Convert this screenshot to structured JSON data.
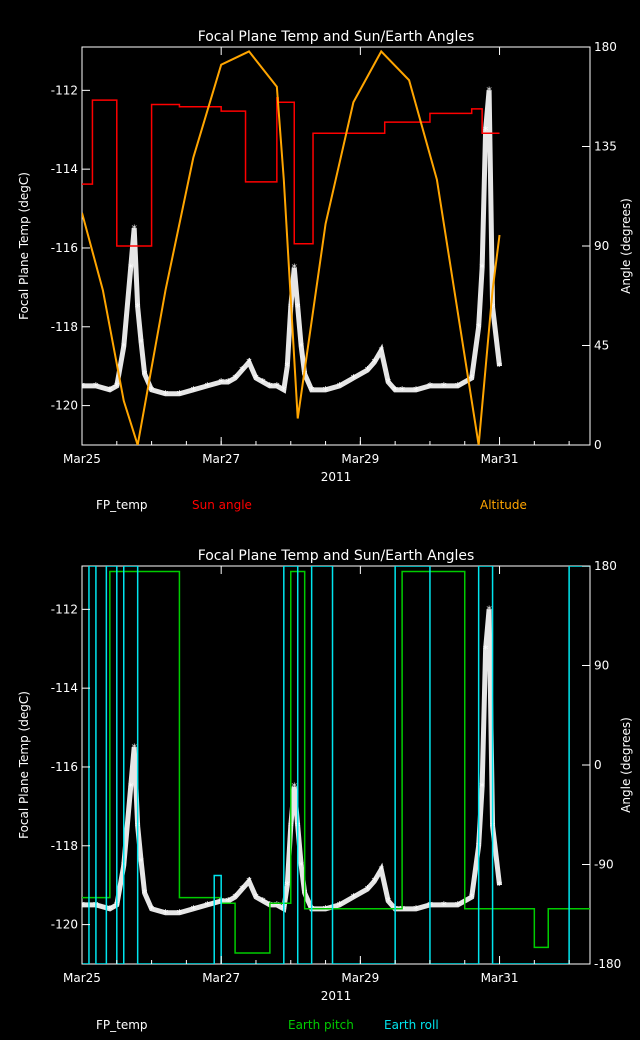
{
  "chart_data": [
    {
      "type": "line",
      "title": "Focal Plane Temp and Sun/Earth Angles",
      "xlabel": "2011",
      "ylabel": "Focal Plane Temp (degC)",
      "y2label": "Angle (degrees)",
      "xlim": [
        0,
        7.3
      ],
      "ylim": [
        -121,
        -110.9
      ],
      "y2lim": [
        0,
        180
      ],
      "x_ticks": [
        0,
        2,
        4,
        6
      ],
      "x_tick_labels": [
        "Mar25",
        "Mar27",
        "Mar29",
        "Mar31"
      ],
      "y_ticks": [
        -120,
        -118,
        -116,
        -114,
        -112
      ],
      "y_tick_labels": [
        "-120",
        "-118",
        "-116",
        "-114",
        "-112"
      ],
      "y2_ticks": [
        0,
        45,
        90,
        135,
        180
      ],
      "y2_tick_labels": [
        "0",
        "45",
        "90",
        "135",
        "180"
      ],
      "legend": [
        "FP_temp",
        "Sun angle",
        "Altitude"
      ],
      "series": [
        {
          "name": "FP_temp",
          "axis": "left",
          "style": "markers",
          "color": "#ffffff",
          "x": [
            0.0,
            0.2,
            0.4,
            0.5,
            0.6,
            0.7,
            0.75,
            0.8,
            0.85,
            0.9,
            1.0,
            1.2,
            1.4,
            1.6,
            1.8,
            2.0,
            2.1,
            2.2,
            2.3,
            2.4,
            2.5,
            2.6,
            2.7,
            2.8,
            2.9,
            2.95,
            3.0,
            3.05,
            3.1,
            3.15,
            3.2,
            3.3,
            3.5,
            3.7,
            3.9,
            4.1,
            4.2,
            4.3,
            4.4,
            4.5,
            4.6,
            4.8,
            5.0,
            5.2,
            5.4,
            5.6,
            5.7,
            5.75,
            5.8,
            5.85,
            5.9,
            6.0
          ],
          "y": [
            -119.5,
            -119.5,
            -119.6,
            -119.5,
            -118.5,
            -116.5,
            -115.5,
            -117.5,
            -118.4,
            -119.2,
            -119.6,
            -119.7,
            -119.7,
            -119.6,
            -119.5,
            -119.4,
            -119.4,
            -119.3,
            -119.1,
            -118.9,
            -119.3,
            -119.4,
            -119.5,
            -119.5,
            -119.6,
            -119.0,
            -117.5,
            -116.5,
            -117.5,
            -118.5,
            -119.2,
            -119.6,
            -119.6,
            -119.5,
            -119.3,
            -119.1,
            -118.9,
            -118.6,
            -119.4,
            -119.6,
            -119.6,
            -119.6,
            -119.5,
            -119.5,
            -119.5,
            -119.3,
            -118.0,
            -116.5,
            -113.0,
            -112.0,
            -117.5,
            -119.0
          ]
        },
        {
          "name": "Sun angle",
          "axis": "right",
          "style": "step",
          "color": "#ff0000",
          "x": [
            0,
            0.15,
            0.15,
            0.5,
            0.5,
            1.0,
            1.0,
            1.4,
            1.4,
            2.0,
            2.0,
            2.35,
            2.35,
            2.8,
            2.8,
            2.82,
            2.82,
            3.05,
            3.05,
            3.32,
            3.32,
            4.2,
            4.2,
            4.35,
            4.35,
            5.0,
            5.0,
            5.6,
            5.6,
            5.75,
            5.75,
            6.0
          ],
          "y": [
            118,
            118,
            156,
            156,
            90,
            90,
            154,
            154,
            153,
            153,
            151,
            151,
            119,
            119,
            157,
            157,
            155,
            155,
            91,
            91,
            141,
            141,
            141,
            141,
            146,
            146,
            150,
            150,
            152,
            152,
            141,
            141
          ]
        },
        {
          "name": "Altitude",
          "axis": "right",
          "style": "line",
          "color": "#ffa500",
          "x": [
            0.0,
            0.3,
            0.6,
            0.8,
            1.2,
            1.6,
            2.0,
            2.4,
            2.8,
            2.9,
            3.1,
            3.5,
            3.9,
            4.3,
            4.7,
            5.1,
            5.35,
            5.5,
            5.7,
            5.9,
            6.0
          ],
          "y": [
            105,
            70,
            20,
            0,
            70,
            130,
            172,
            178,
            162,
            120,
            12,
            100,
            155,
            178,
            165,
            120,
            70,
            40,
            0,
            70,
            95
          ]
        }
      ]
    },
    {
      "type": "line",
      "title": "Focal Plane Temp and Sun/Earth Angles",
      "xlabel": "2011",
      "ylabel": "Focal Plane Temp (degC)",
      "y2label": "Angle (degrees)",
      "xlim": [
        0,
        7.3
      ],
      "ylim": [
        -121,
        -110.9
      ],
      "y2lim": [
        -180,
        180
      ],
      "x_ticks": [
        0,
        2,
        4,
        6
      ],
      "x_tick_labels": [
        "Mar25",
        "Mar27",
        "Mar29",
        "Mar31"
      ],
      "y_ticks": [
        -120,
        -118,
        -116,
        -114,
        -112
      ],
      "y_tick_labels": [
        "-120",
        "-118",
        "-116",
        "-114",
        "-112"
      ],
      "y2_ticks": [
        -180,
        -90,
        0,
        90,
        180
      ],
      "y2_tick_labels": [
        "-180",
        "-90",
        "0",
        "90",
        "180"
      ],
      "legend": [
        "FP_temp",
        "Earth pitch",
        "Earth roll"
      ],
      "series": [
        {
          "name": "FP_temp",
          "axis": "left",
          "style": "markers",
          "color": "#ffffff",
          "x": [
            0.0,
            0.2,
            0.4,
            0.5,
            0.6,
            0.7,
            0.75,
            0.8,
            0.85,
            0.9,
            1.0,
            1.2,
            1.4,
            1.6,
            1.8,
            2.0,
            2.1,
            2.2,
            2.3,
            2.4,
            2.5,
            2.6,
            2.7,
            2.8,
            2.9,
            2.95,
            3.0,
            3.05,
            3.1,
            3.15,
            3.2,
            3.3,
            3.5,
            3.7,
            3.9,
            4.1,
            4.2,
            4.3,
            4.4,
            4.5,
            4.6,
            4.8,
            5.0,
            5.2,
            5.4,
            5.6,
            5.7,
            5.75,
            5.8,
            5.85,
            5.9,
            6.0
          ],
          "y": [
            -119.5,
            -119.5,
            -119.6,
            -119.5,
            -118.5,
            -116.5,
            -115.5,
            -117.5,
            -118.4,
            -119.2,
            -119.6,
            -119.7,
            -119.7,
            -119.6,
            -119.5,
            -119.4,
            -119.4,
            -119.3,
            -119.1,
            -118.9,
            -119.3,
            -119.4,
            -119.5,
            -119.5,
            -119.6,
            -119.0,
            -117.5,
            -116.5,
            -117.5,
            -118.5,
            -119.2,
            -119.6,
            -119.6,
            -119.5,
            -119.3,
            -119.1,
            -118.9,
            -118.6,
            -119.4,
            -119.6,
            -119.6,
            -119.6,
            -119.5,
            -119.5,
            -119.5,
            -119.3,
            -118.0,
            -116.5,
            -113.0,
            -112.0,
            -117.5,
            -119.0
          ]
        },
        {
          "name": "Earth pitch",
          "axis": "right",
          "style": "step",
          "color": "#00cc00",
          "x": [
            0,
            0.4,
            0.4,
            1.4,
            1.4,
            2.0,
            2.0,
            2.2,
            2.2,
            2.7,
            2.7,
            3.0,
            3.0,
            3.2,
            3.2,
            3.5,
            3.5,
            4.0,
            4.0,
            4.6,
            4.6,
            5.5,
            5.5,
            6.0,
            6.0,
            6.5,
            6.5,
            6.7,
            6.7,
            7.3
          ],
          "y": [
            -120,
            -120,
            175,
            175,
            -120,
            -120,
            -125,
            -125,
            -170,
            -170,
            -125,
            -125,
            175,
            175,
            -130,
            -130,
            -130,
            -130,
            -130,
            -130,
            175,
            175,
            -130,
            -130,
            -130,
            -130,
            -165,
            -165,
            -130,
            -130
          ]
        },
        {
          "name": "Earth roll",
          "axis": "right",
          "style": "step",
          "color": "#00e5ee",
          "x": [
            0,
            0.1,
            0.1,
            0.2,
            0.2,
            0.35,
            0.35,
            0.5,
            0.5,
            0.6,
            0.6,
            0.8,
            0.8,
            1.4,
            1.4,
            1.9,
            1.9,
            2.0,
            2.0,
            2.7,
            2.7,
            2.9,
            2.9,
            3.1,
            3.1,
            3.3,
            3.3,
            3.6,
            3.6,
            4.0,
            4.0,
            4.5,
            4.5,
            5.0,
            5.0,
            5.7,
            5.7,
            5.9,
            5.9,
            6.5,
            6.5,
            7.0,
            7.0,
            7.3
          ],
          "y": [
            -180,
            -180,
            180,
            180,
            -180,
            -180,
            180,
            180,
            -180,
            -180,
            180,
            180,
            -180,
            -180,
            -180,
            -180,
            -100,
            -100,
            -180,
            -180,
            -180,
            -180,
            180,
            180,
            -180,
            -180,
            180,
            180,
            -180,
            -180,
            -180,
            -180,
            180,
            180,
            -180,
            -180,
            180,
            180,
            -180,
            -180,
            -180,
            -180,
            180,
            180
          ]
        }
      ]
    }
  ]
}
